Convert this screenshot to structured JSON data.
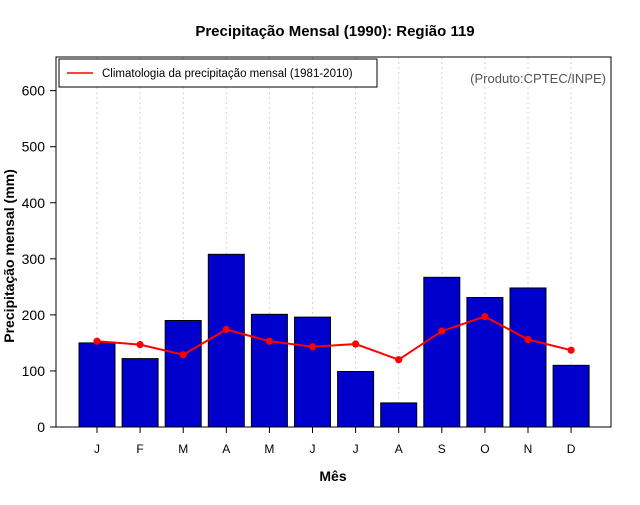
{
  "chart_data": {
    "type": "bar",
    "title": "Precipitação Mensal (1990): Região 119",
    "xlabel": "Mês",
    "ylabel": "Precipitação mensal (mm)",
    "credit": "(Produto:CPTEC/INPE)",
    "ylim": [
      0,
      660
    ],
    "yticks": [
      0,
      100,
      200,
      300,
      400,
      500,
      600
    ],
    "grid": "vertical-dotted",
    "legend_position": "top-left",
    "categories": [
      "J",
      "F",
      "M",
      "A",
      "M",
      "J",
      "J",
      "A",
      "S",
      "O",
      "N",
      "D"
    ],
    "series": [
      {
        "name": "Precipitação mensal (1990)",
        "kind": "bar",
        "color": "#0000cd",
        "values": [
          150,
          122,
          190,
          308,
          201,
          196,
          99,
          43,
          267,
          231,
          248,
          110
        ]
      },
      {
        "name": "Climatologia da precipitação mensal (1981-2010)",
        "kind": "line",
        "color": "#ff0000",
        "values": [
          153,
          147,
          129,
          174,
          153,
          143,
          148,
          120,
          171,
          197,
          156,
          137
        ]
      }
    ]
  }
}
